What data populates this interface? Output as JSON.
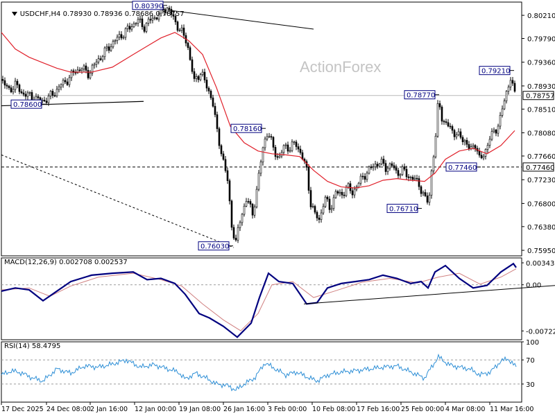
{
  "header": {
    "symbol": "USDCHF,H4",
    "open": "0.78930",
    "high": "0.78936",
    "low": "0.78686",
    "close": "0.78757"
  },
  "watermark": "ActionForex",
  "chart_data": [
    {
      "type": "candlestick",
      "panel": "price",
      "ylim": [
        0.7585,
        0.8045
      ],
      "y_ticks": [
        "0.80210",
        "0.79790",
        "0.79360",
        "0.78930",
        "0.78510",
        "0.78080",
        "0.77660",
        "0.77230",
        "0.76800",
        "0.76380",
        "0.75950"
      ],
      "x_ticks": [
        "17 Dec 2025",
        "24 Dec 08:00",
        "2 Jan 16:00",
        "12 Jan 00:00",
        "19 Jan 08:00",
        "26 Jan 16:00",
        "3 Feb 00:00",
        "10 Feb 08:00",
        "17 Feb 16:00",
        "25 Feb 00:00",
        "4 Mar 08:00",
        "11 Mar 16:00"
      ],
      "current_price": "0.78757",
      "support_level": "0.77460",
      "series": [
        {
          "name": "",
          "color": "#e0202a",
          "note": "moving average"
        }
      ],
      "annotations": [
        "0.80390",
        "0.78600",
        "0.78160",
        "0.76030",
        "0.76710",
        "0.77460",
        "0.78770",
        "0.79210"
      ],
      "close_path": [
        [
          0,
          0.7905
        ],
        [
          10,
          0.7885
        ],
        [
          20,
          0.7895
        ],
        [
          30,
          0.788
        ],
        [
          40,
          0.7875
        ],
        [
          50,
          0.787
        ],
        [
          58,
          0.7865
        ],
        [
          66,
          0.787
        ],
        [
          76,
          0.788
        ],
        [
          86,
          0.7895
        ],
        [
          96,
          0.7905
        ],
        [
          106,
          0.792
        ],
        [
          116,
          0.7925
        ],
        [
          126,
          0.7915
        ],
        [
          136,
          0.7935
        ],
        [
          146,
          0.795
        ],
        [
          156,
          0.7965
        ],
        [
          166,
          0.7978
        ],
        [
          176,
          0.7988
        ],
        [
          186,
          0.8
        ],
        [
          196,
          0.8012
        ],
        [
          206,
          0.8
        ],
        [
          214,
          0.8012
        ],
        [
          222,
          0.8018
        ],
        [
          232,
          0.803
        ],
        [
          240,
          0.8035
        ],
        [
          250,
          0.801
        ],
        [
          260,
          0.799
        ],
        [
          268,
          0.797
        ],
        [
          278,
          0.79
        ],
        [
          288,
          0.792
        ],
        [
          296,
          0.789
        ],
        [
          304,
          0.787
        ],
        [
          312,
          0.78
        ],
        [
          318,
          0.777
        ],
        [
          326,
          0.772
        ],
        [
          332,
          0.764
        ],
        [
          338,
          0.761
        ],
        [
          346,
          0.766
        ],
        [
          354,
          0.769
        ],
        [
          362,
          0.766
        ],
        [
          370,
          0.772
        ],
        [
          378,
          0.779
        ],
        [
          384,
          0.781
        ],
        [
          392,
          0.778
        ],
        [
          400,
          0.776
        ],
        [
          408,
          0.7785
        ],
        [
          416,
          0.778
        ],
        [
          424,
          0.779
        ],
        [
          432,
          0.777
        ],
        [
          440,
          0.774
        ],
        [
          446,
          0.768
        ],
        [
          452,
          0.766
        ],
        [
          458,
          0.765
        ],
        [
          466,
          0.769
        ],
        [
          474,
          0.767
        ],
        [
          482,
          0.77
        ],
        [
          490,
          0.7695
        ],
        [
          498,
          0.771
        ],
        [
          506,
          0.77
        ],
        [
          514,
          0.7715
        ],
        [
          522,
          0.773
        ],
        [
          530,
          0.774
        ],
        [
          538,
          0.775
        ],
        [
          546,
          0.7755
        ],
        [
          554,
          0.7745
        ],
        [
          562,
          0.775
        ],
        [
          570,
          0.7735
        ],
        [
          578,
          0.774
        ],
        [
          586,
          0.773
        ],
        [
          594,
          0.7725
        ],
        [
          602,
          0.7715
        ],
        [
          610,
          0.769
        ],
        [
          616,
          0.768
        ],
        [
          620,
          0.774
        ],
        [
          626,
          0.78
        ],
        [
          630,
          0.787
        ],
        [
          636,
          0.783
        ],
        [
          644,
          0.782
        ],
        [
          652,
          0.781
        ],
        [
          660,
          0.78
        ],
        [
          668,
          0.7795
        ],
        [
          676,
          0.7775
        ],
        [
          684,
          0.779
        ],
        [
          690,
          0.7755
        ],
        [
          696,
          0.777
        ],
        [
          704,
          0.78
        ],
        [
          712,
          0.781
        ],
        [
          720,
          0.784
        ],
        [
          728,
          0.788
        ],
        [
          734,
          0.791
        ],
        [
          740,
          0.7876
        ]
      ],
      "ma_path": [
        [
          0,
          0.799
        ],
        [
          20,
          0.796
        ],
        [
          40,
          0.7945
        ],
        [
          60,
          0.7935
        ],
        [
          80,
          0.7925
        ],
        [
          100,
          0.7918
        ],
        [
          130,
          0.7918
        ],
        [
          160,
          0.7927
        ],
        [
          190,
          0.795
        ],
        [
          210,
          0.7965
        ],
        [
          230,
          0.798
        ],
        [
          250,
          0.799
        ],
        [
          270,
          0.7975
        ],
        [
          290,
          0.795
        ],
        [
          310,
          0.789
        ],
        [
          330,
          0.782
        ],
        [
          350,
          0.779
        ],
        [
          370,
          0.7775
        ],
        [
          390,
          0.777
        ],
        [
          410,
          0.7768
        ],
        [
          430,
          0.7765
        ],
        [
          450,
          0.774
        ],
        [
          470,
          0.772
        ],
        [
          490,
          0.771
        ],
        [
          510,
          0.7708
        ],
        [
          530,
          0.7712
        ],
        [
          550,
          0.7722
        ],
        [
          570,
          0.7725
        ],
        [
          590,
          0.7722
        ],
        [
          610,
          0.772
        ],
        [
          625,
          0.7735
        ],
        [
          640,
          0.776
        ],
        [
          660,
          0.7775
        ],
        [
          680,
          0.778
        ],
        [
          700,
          0.777
        ],
        [
          720,
          0.7785
        ],
        [
          740,
          0.7812
        ]
      ]
    },
    {
      "type": "line",
      "panel": "macd",
      "title": "MACD(12,26,9) 0.002708 0.002537",
      "ylim": [
        -0.0086,
        0.0042
      ],
      "y_ticks": [
        "0.003432",
        "0.00",
        "-0.007223"
      ],
      "series": [
        {
          "name": "MACD",
          "color": "#00007f",
          "values": [
            [
              0,
              -0.001
            ],
            [
              20,
              -0.0005
            ],
            [
              40,
              -0.0008
            ],
            [
              60,
              -0.0025
            ],
            [
              80,
              -0.001
            ],
            [
              100,
              0.0005
            ],
            [
              130,
              0.0015
            ],
            [
              160,
              0.0018
            ],
            [
              190,
              0.002
            ],
            [
              210,
              0.0008
            ],
            [
              230,
              0.001
            ],
            [
              250,
              0.0002
            ],
            [
              265,
              -0.0015
            ],
            [
              285,
              -0.0045
            ],
            [
              300,
              -0.0052
            ],
            [
              320,
              -0.0065
            ],
            [
              340,
              -0.0082
            ],
            [
              360,
              -0.006
            ],
            [
              372,
              -0.002
            ],
            [
              385,
              0.0018
            ],
            [
              400,
              0.0005
            ],
            [
              420,
              0.0002
            ],
            [
              440,
              -0.003
            ],
            [
              455,
              -0.0028
            ],
            [
              470,
              -0.0005
            ],
            [
              490,
              0.0002
            ],
            [
              510,
              0.0005
            ],
            [
              530,
              0.0008
            ],
            [
              550,
              0.0015
            ],
            [
              570,
              0.001
            ],
            [
              590,
              0.0002
            ],
            [
              605,
              0.0005
            ],
            [
              615,
              -0.0005
            ],
            [
              625,
              0.002
            ],
            [
              640,
              0.003
            ],
            [
              660,
              0.001
            ],
            [
              680,
              -0.0005
            ],
            [
              700,
              -0.0001
            ],
            [
              720,
              0.002
            ],
            [
              738,
              0.0033
            ],
            [
              742,
              0.0027
            ]
          ]
        },
        {
          "name": "Signal",
          "color": "#d08080",
          "values": [
            [
              0,
              -0.0008
            ],
            [
              40,
              -0.0005
            ],
            [
              70,
              -0.0018
            ],
            [
              100,
              -0.0002
            ],
            [
              140,
              0.0012
            ],
            [
              190,
              0.0018
            ],
            [
              230,
              0.0008
            ],
            [
              260,
              -0.0002
            ],
            [
              290,
              -0.003
            ],
            [
              320,
              -0.0055
            ],
            [
              345,
              -0.0072
            ],
            [
              370,
              -0.0045
            ],
            [
              390,
              0.0
            ],
            [
              420,
              0.0005
            ],
            [
              450,
              -0.002
            ],
            [
              480,
              -0.001
            ],
            [
              520,
              0.0004
            ],
            [
              560,
              0.001
            ],
            [
              600,
              0.0003
            ],
            [
              630,
              0.0012
            ],
            [
              660,
              0.0018
            ],
            [
              690,
              0.0001
            ],
            [
              720,
              0.0012
            ],
            [
              742,
              0.0025
            ]
          ]
        }
      ]
    },
    {
      "type": "line",
      "panel": "rsi",
      "title": "RSI(14) 58.4795",
      "ylim": [
        0,
        100
      ],
      "y_ticks": [
        "100",
        "70",
        "30",
        "0"
      ],
      "series": [
        {
          "name": "RSI",
          "color": "#2e8fd6",
          "values": [
            [
              0,
              45
            ],
            [
              15,
              52
            ],
            [
              30,
              48
            ],
            [
              45,
              40
            ],
            [
              60,
              35
            ],
            [
              80,
              55
            ],
            [
              100,
              48
            ],
            [
              120,
              60
            ],
            [
              140,
              58
            ],
            [
              160,
              63
            ],
            [
              180,
              70
            ],
            [
              200,
              58
            ],
            [
              220,
              62
            ],
            [
              240,
              55
            ],
            [
              255,
              50
            ],
            [
              265,
              38
            ],
            [
              280,
              48
            ],
            [
              295,
              40
            ],
            [
              310,
              30
            ],
            [
              325,
              28
            ],
            [
              338,
              20
            ],
            [
              350,
              30
            ],
            [
              365,
              40
            ],
            [
              380,
              65
            ],
            [
              395,
              55
            ],
            [
              410,
              45
            ],
            [
              425,
              50
            ],
            [
              440,
              42
            ],
            [
              455,
              35
            ],
            [
              470,
              45
            ],
            [
              490,
              50
            ],
            [
              510,
              52
            ],
            [
              530,
              55
            ],
            [
              550,
              58
            ],
            [
              570,
              60
            ],
            [
              590,
              50
            ],
            [
              610,
              40
            ],
            [
              620,
              58
            ],
            [
              630,
              75
            ],
            [
              645,
              62
            ],
            [
              660,
              58
            ],
            [
              675,
              55
            ],
            [
              690,
              45
            ],
            [
              705,
              50
            ],
            [
              720,
              68
            ],
            [
              730,
              72
            ],
            [
              742,
              58
            ]
          ]
        }
      ]
    }
  ]
}
